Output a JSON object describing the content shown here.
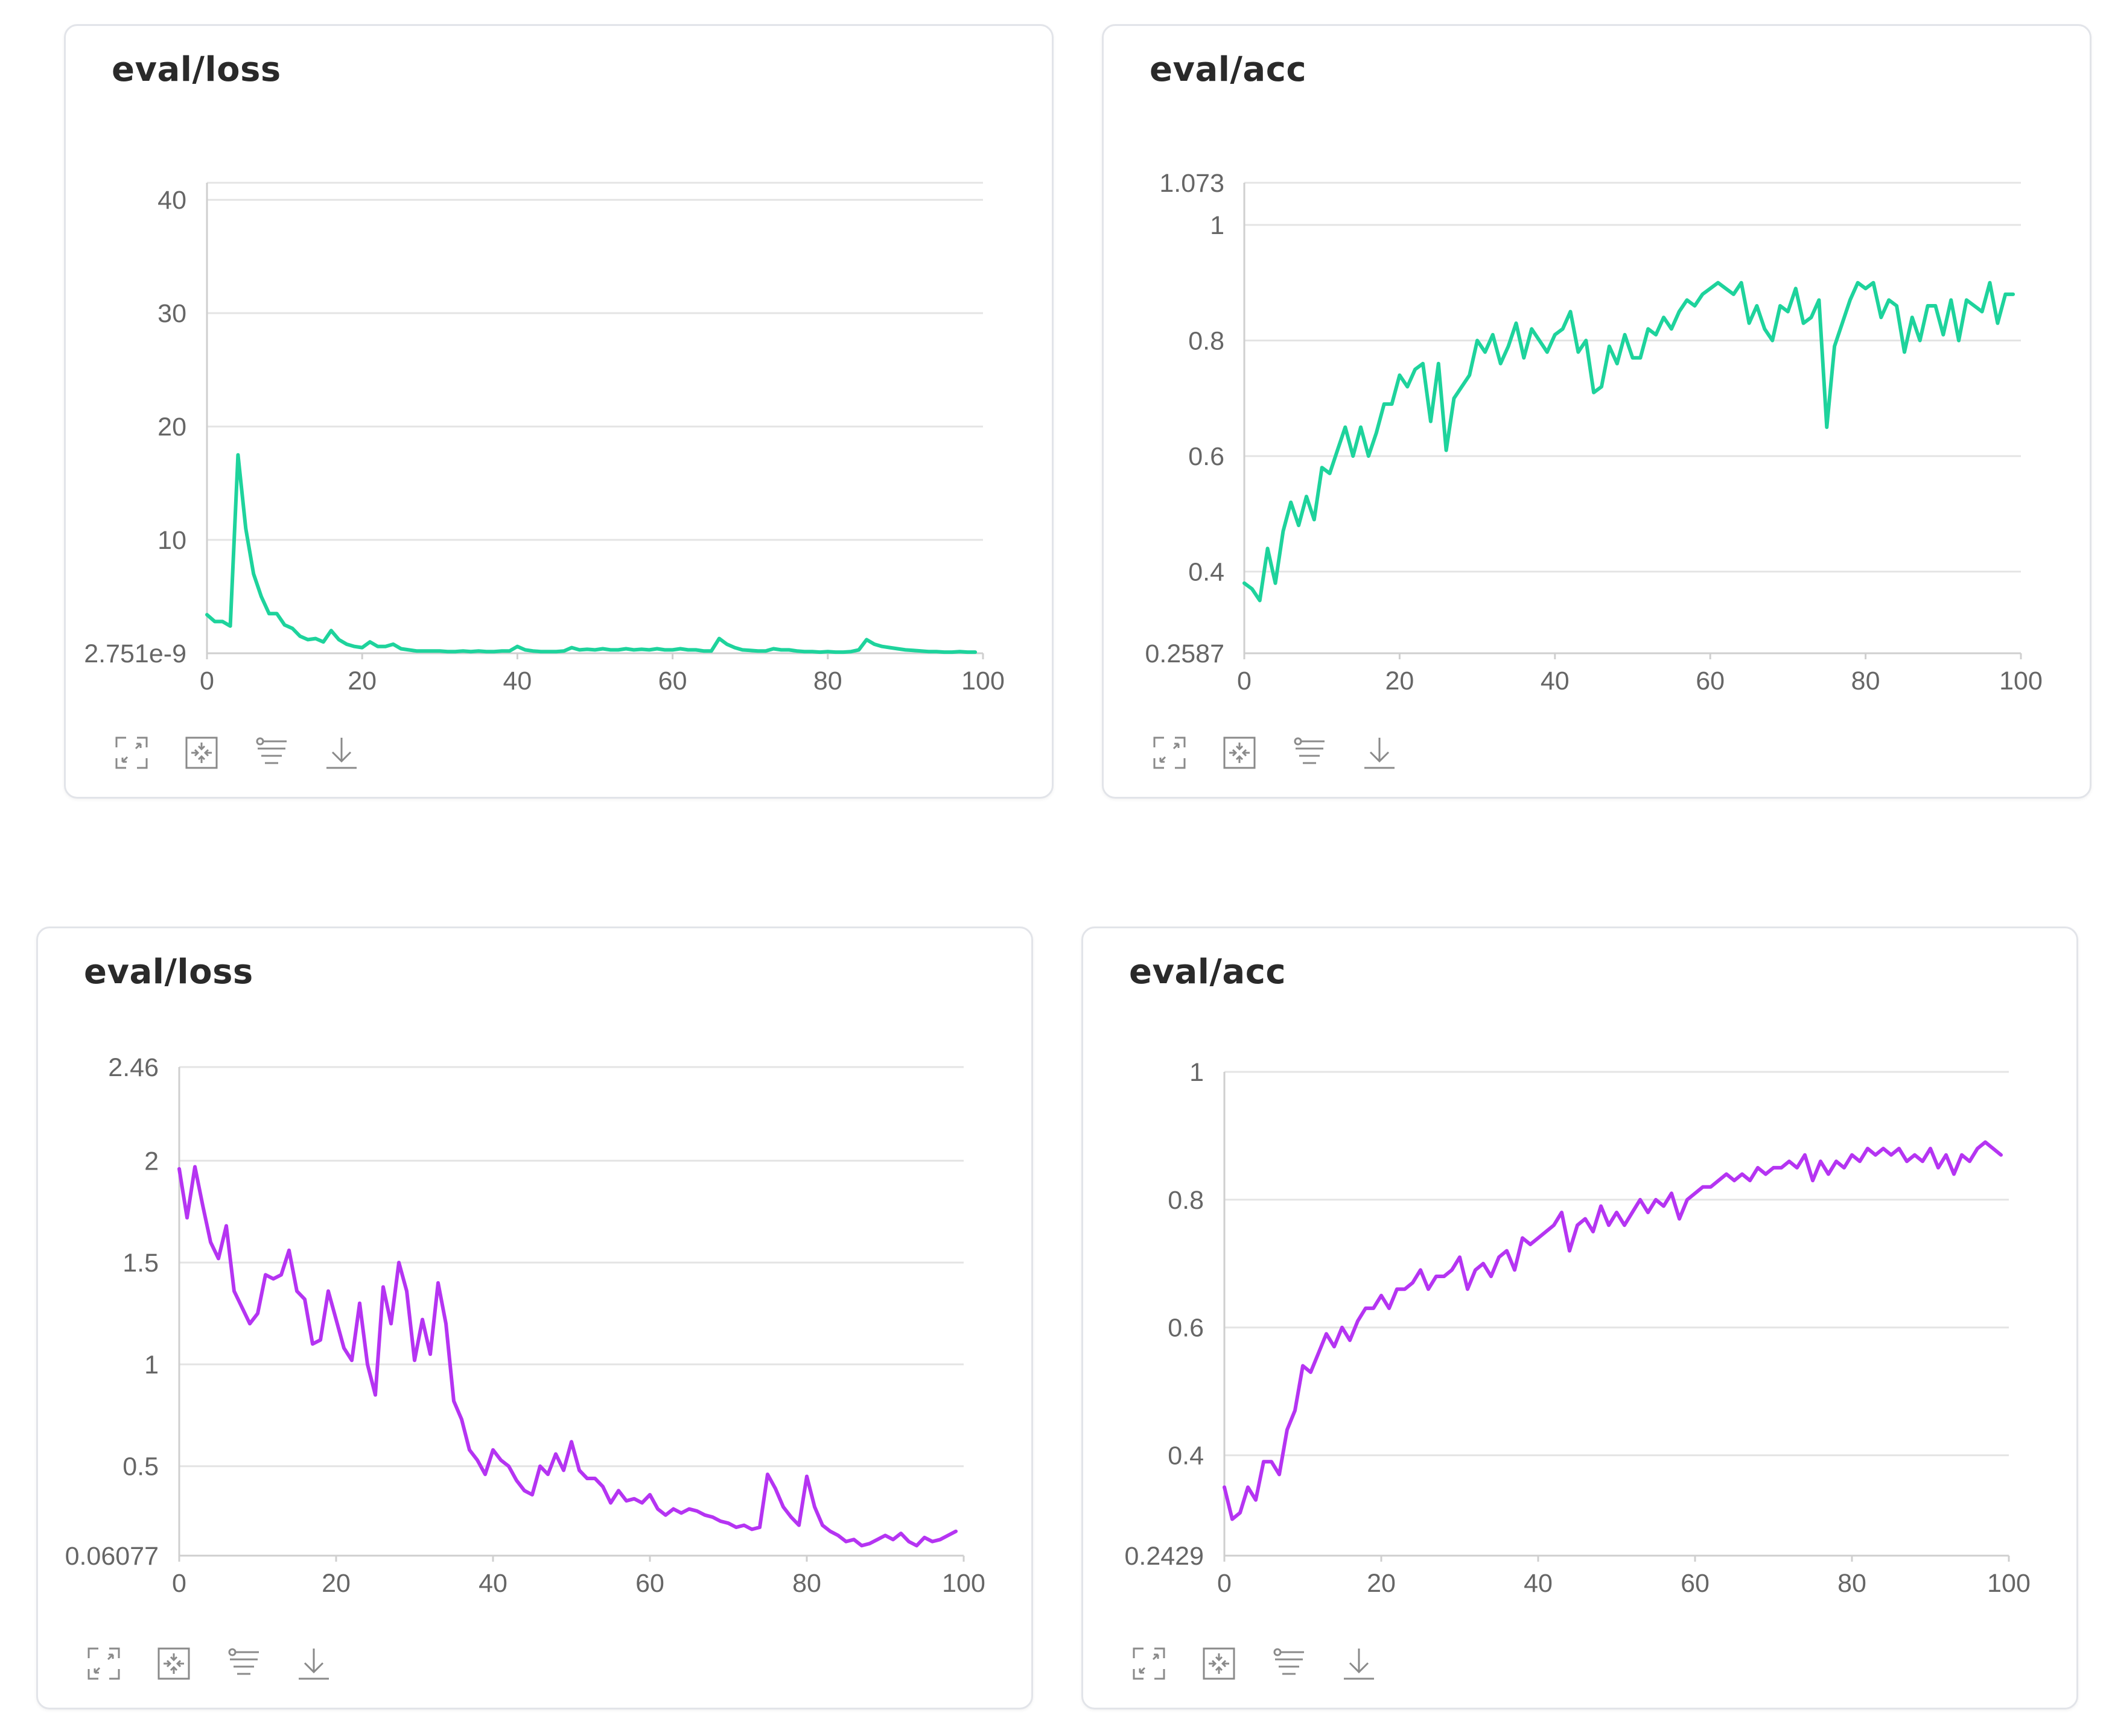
{
  "toolbar_icons": [
    "expand-icon",
    "fit-to-screen-icon",
    "filter-icon",
    "download-icon"
  ],
  "chart_data": [
    {
      "id": "top-left",
      "type": "line",
      "title": "eval/loss",
      "line_color": "#1ed39c",
      "xlim": [
        0,
        100
      ],
      "ylim": [
        2.751e-09,
        41.5
      ],
      "x_ticks": [
        0,
        20,
        40,
        60,
        80,
        100
      ],
      "y_ticks": [
        {
          "value": 2.751e-09,
          "label": "2.751e-9"
        },
        {
          "value": 10,
          "label": "10"
        },
        {
          "value": 20,
          "label": "20"
        },
        {
          "value": 30,
          "label": "30"
        },
        {
          "value": 40,
          "label": "40"
        }
      ],
      "x": [
        0,
        1,
        2,
        3,
        4,
        5,
        6,
        7,
        8,
        9,
        10,
        11,
        12,
        13,
        14,
        15,
        16,
        17,
        18,
        19,
        20,
        21,
        22,
        23,
        24,
        25,
        26,
        27,
        28,
        29,
        30,
        31,
        32,
        33,
        34,
        35,
        36,
        37,
        38,
        39,
        40,
        41,
        42,
        43,
        44,
        45,
        46,
        47,
        48,
        49,
        50,
        51,
        52,
        53,
        54,
        55,
        56,
        57,
        58,
        59,
        60,
        61,
        62,
        63,
        64,
        65,
        66,
        67,
        68,
        69,
        70,
        71,
        72,
        73,
        74,
        75,
        76,
        77,
        78,
        79,
        80,
        81,
        82,
        83,
        84,
        85,
        86,
        87,
        88,
        89,
        90,
        91,
        92,
        93,
        94,
        95,
        96,
        97,
        98,
        99
      ],
      "values": [
        3.4,
        2.8,
        2.8,
        2.4,
        17.5,
        11,
        7,
        5,
        3.5,
        3.5,
        2.5,
        2.2,
        1.5,
        1.2,
        1.3,
        1,
        2,
        1.2,
        0.8,
        0.6,
        0.5,
        1,
        0.6,
        0.6,
        0.8,
        0.4,
        0.3,
        0.2,
        0.2,
        0.2,
        0.2,
        0.15,
        0.15,
        0.2,
        0.15,
        0.2,
        0.15,
        0.15,
        0.2,
        0.2,
        0.6,
        0.3,
        0.2,
        0.15,
        0.15,
        0.15,
        0.2,
        0.5,
        0.3,
        0.35,
        0.3,
        0.4,
        0.3,
        0.3,
        0.4,
        0.3,
        0.35,
        0.3,
        0.4,
        0.3,
        0.3,
        0.4,
        0.3,
        0.3,
        0.2,
        0.2,
        1.3,
        0.8,
        0.5,
        0.3,
        0.25,
        0.2,
        0.2,
        0.4,
        0.3,
        0.3,
        0.2,
        0.15,
        0.15,
        0.1,
        0.15,
        0.1,
        0.1,
        0.15,
        0.3,
        1.2,
        0.8,
        0.6,
        0.5,
        0.4,
        0.3,
        0.25,
        0.2,
        0.15,
        0.15,
        0.1,
        0.1,
        0.15,
        0.1,
        0.1
      ]
    },
    {
      "id": "top-right",
      "type": "line",
      "title": "eval/acc",
      "line_color": "#1ed39c",
      "xlim": [
        0,
        100
      ],
      "ylim": [
        0.2587,
        1.073
      ],
      "x_ticks": [
        0,
        20,
        40,
        60,
        80,
        100
      ],
      "y_ticks": [
        {
          "value": 0.2587,
          "label": "0.2587"
        },
        {
          "value": 0.4,
          "label": "0.4"
        },
        {
          "value": 0.6,
          "label": "0.6"
        },
        {
          "value": 0.8,
          "label": "0.8"
        },
        {
          "value": 1,
          "label": "1"
        },
        {
          "value": 1.073,
          "label": "1.073"
        }
      ],
      "x": [
        0,
        1,
        2,
        3,
        4,
        5,
        6,
        7,
        8,
        9,
        10,
        11,
        12,
        13,
        14,
        15,
        16,
        17,
        18,
        19,
        20,
        21,
        22,
        23,
        24,
        25,
        26,
        27,
        28,
        29,
        30,
        31,
        32,
        33,
        34,
        35,
        36,
        37,
        38,
        39,
        40,
        41,
        42,
        43,
        44,
        45,
        46,
        47,
        48,
        49,
        50,
        51,
        52,
        53,
        54,
        55,
        56,
        57,
        58,
        59,
        60,
        61,
        62,
        63,
        64,
        65,
        66,
        67,
        68,
        69,
        70,
        71,
        72,
        73,
        74,
        75,
        76,
        77,
        78,
        79,
        80,
        81,
        82,
        83,
        84,
        85,
        86,
        87,
        88,
        89,
        90,
        91,
        92,
        93,
        94,
        95,
        96,
        97,
        98,
        99
      ],
      "values": [
        0.38,
        0.37,
        0.35,
        0.44,
        0.38,
        0.47,
        0.52,
        0.48,
        0.53,
        0.49,
        0.58,
        0.57,
        0.61,
        0.65,
        0.6,
        0.65,
        0.6,
        0.64,
        0.69,
        0.69,
        0.74,
        0.72,
        0.75,
        0.76,
        0.66,
        0.76,
        0.61,
        0.7,
        0.72,
        0.74,
        0.8,
        0.78,
        0.81,
        0.76,
        0.79,
        0.83,
        0.77,
        0.82,
        0.8,
        0.78,
        0.81,
        0.82,
        0.85,
        0.78,
        0.8,
        0.71,
        0.72,
        0.79,
        0.76,
        0.81,
        0.77,
        0.77,
        0.82,
        0.81,
        0.84,
        0.82,
        0.85,
        0.87,
        0.86,
        0.88,
        0.89,
        0.9,
        0.89,
        0.88,
        0.9,
        0.83,
        0.86,
        0.82,
        0.8,
        0.86,
        0.85,
        0.89,
        0.83,
        0.84,
        0.87,
        0.65,
        0.79,
        0.83,
        0.87,
        0.9,
        0.89,
        0.9,
        0.84,
        0.87,
        0.86,
        0.78,
        0.84,
        0.8,
        0.86,
        0.86,
        0.81,
        0.87,
        0.8,
        0.87,
        0.86,
        0.85,
        0.9,
        0.83,
        0.88,
        0.88
      ]
    },
    {
      "id": "bottom-left",
      "type": "line",
      "title": "eval/loss",
      "line_color": "#b534f2",
      "xlim": [
        0,
        100
      ],
      "ylim": [
        0.06077,
        2.46
      ],
      "x_ticks": [
        0,
        20,
        40,
        60,
        80,
        100
      ],
      "y_ticks": [
        {
          "value": 0.06077,
          "label": "0.06077"
        },
        {
          "value": 0.5,
          "label": "0.5"
        },
        {
          "value": 1,
          "label": "1"
        },
        {
          "value": 1.5,
          "label": "1.5"
        },
        {
          "value": 2,
          "label": "2"
        },
        {
          "value": 2.46,
          "label": "2.46"
        }
      ],
      "x": [
        0,
        1,
        2,
        3,
        4,
        5,
        6,
        7,
        8,
        9,
        10,
        11,
        12,
        13,
        14,
        15,
        16,
        17,
        18,
        19,
        20,
        21,
        22,
        23,
        24,
        25,
        26,
        27,
        28,
        29,
        30,
        31,
        32,
        33,
        34,
        35,
        36,
        37,
        38,
        39,
        40,
        41,
        42,
        43,
        44,
        45,
        46,
        47,
        48,
        49,
        50,
        51,
        52,
        53,
        54,
        55,
        56,
        57,
        58,
        59,
        60,
        61,
        62,
        63,
        64,
        65,
        66,
        67,
        68,
        69,
        70,
        71,
        72,
        73,
        74,
        75,
        76,
        77,
        78,
        79,
        80,
        81,
        82,
        83,
        84,
        85,
        86,
        87,
        88,
        89,
        90,
        91,
        92,
        93,
        94,
        95,
        96,
        97,
        98,
        99
      ],
      "values": [
        1.96,
        1.72,
        1.97,
        1.78,
        1.6,
        1.52,
        1.68,
        1.36,
        1.28,
        1.2,
        1.25,
        1.44,
        1.42,
        1.44,
        1.56,
        1.36,
        1.32,
        1.1,
        1.12,
        1.36,
        1.22,
        1.08,
        1.02,
        1.3,
        1.0,
        0.85,
        1.38,
        1.2,
        1.5,
        1.36,
        1.02,
        1.22,
        1.05,
        1.4,
        1.2,
        0.82,
        0.73,
        0.58,
        0.53,
        0.46,
        0.58,
        0.53,
        0.5,
        0.43,
        0.38,
        0.36,
        0.5,
        0.46,
        0.56,
        0.48,
        0.62,
        0.48,
        0.44,
        0.44,
        0.4,
        0.32,
        0.38,
        0.33,
        0.34,
        0.32,
        0.36,
        0.29,
        0.26,
        0.29,
        0.27,
        0.29,
        0.28,
        0.26,
        0.25,
        0.23,
        0.22,
        0.2,
        0.21,
        0.19,
        0.2,
        0.46,
        0.39,
        0.3,
        0.25,
        0.21,
        0.45,
        0.3,
        0.21,
        0.18,
        0.16,
        0.13,
        0.14,
        0.11,
        0.12,
        0.14,
        0.16,
        0.14,
        0.17,
        0.13,
        0.11,
        0.15,
        0.13,
        0.14,
        0.16,
        0.18
      ]
    },
    {
      "id": "bottom-right",
      "type": "line",
      "title": "eval/acc",
      "line_color": "#b534f2",
      "xlim": [
        0,
        100
      ],
      "ylim": [
        0.2429,
        1.0
      ],
      "x_ticks": [
        0,
        20,
        40,
        60,
        80,
        100
      ],
      "y_ticks": [
        {
          "value": 0.2429,
          "label": "0.2429"
        },
        {
          "value": 0.4,
          "label": "0.4"
        },
        {
          "value": 0.6,
          "label": "0.6"
        },
        {
          "value": 0.8,
          "label": "0.8"
        },
        {
          "value": 1,
          "label": "1"
        }
      ],
      "x": [
        0,
        1,
        2,
        3,
        4,
        5,
        6,
        7,
        8,
        9,
        10,
        11,
        12,
        13,
        14,
        15,
        16,
        17,
        18,
        19,
        20,
        21,
        22,
        23,
        24,
        25,
        26,
        27,
        28,
        29,
        30,
        31,
        32,
        33,
        34,
        35,
        36,
        37,
        38,
        39,
        40,
        41,
        42,
        43,
        44,
        45,
        46,
        47,
        48,
        49,
        50,
        51,
        52,
        53,
        54,
        55,
        56,
        57,
        58,
        59,
        60,
        61,
        62,
        63,
        64,
        65,
        66,
        67,
        68,
        69,
        70,
        71,
        72,
        73,
        74,
        75,
        76,
        77,
        78,
        79,
        80,
        81,
        82,
        83,
        84,
        85,
        86,
        87,
        88,
        89,
        90,
        91,
        92,
        93,
        94,
        95,
        96,
        97,
        98,
        99
      ],
      "values": [
        0.35,
        0.3,
        0.31,
        0.35,
        0.33,
        0.39,
        0.39,
        0.37,
        0.44,
        0.47,
        0.54,
        0.53,
        0.56,
        0.59,
        0.57,
        0.6,
        0.58,
        0.61,
        0.63,
        0.63,
        0.65,
        0.63,
        0.66,
        0.66,
        0.67,
        0.69,
        0.66,
        0.68,
        0.68,
        0.69,
        0.71,
        0.66,
        0.69,
        0.7,
        0.68,
        0.71,
        0.72,
        0.69,
        0.74,
        0.73,
        0.74,
        0.75,
        0.76,
        0.78,
        0.72,
        0.76,
        0.77,
        0.75,
        0.79,
        0.76,
        0.78,
        0.76,
        0.78,
        0.8,
        0.78,
        0.8,
        0.79,
        0.81,
        0.77,
        0.8,
        0.81,
        0.82,
        0.82,
        0.83,
        0.84,
        0.83,
        0.84,
        0.83,
        0.85,
        0.84,
        0.85,
        0.85,
        0.86,
        0.85,
        0.87,
        0.83,
        0.86,
        0.84,
        0.86,
        0.85,
        0.87,
        0.86,
        0.88,
        0.87,
        0.88,
        0.87,
        0.88,
        0.86,
        0.87,
        0.86,
        0.88,
        0.85,
        0.87,
        0.84,
        0.87,
        0.86,
        0.88,
        0.89,
        0.88,
        0.87
      ]
    }
  ]
}
